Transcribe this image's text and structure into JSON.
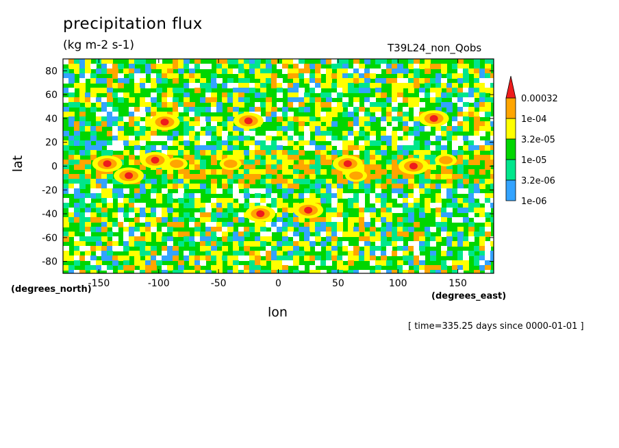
{
  "chart_data": {
    "type": "heatmap",
    "title": "precipitation flux",
    "units": "(kg m-2 s-1)",
    "run_label": "T39L24_non_Qobs",
    "xlabel": "lon",
    "ylabel": "lat",
    "x_units_label": "(degrees_east)",
    "y_units_label": "(degrees_north)",
    "time_label": "[ time=335.25 days since 0000-01-01 ]",
    "xlim": [
      -180,
      180
    ],
    "ylim": [
      -90,
      90
    ],
    "x_ticks": [
      -150,
      -100,
      -50,
      0,
      50,
      100,
      150
    ],
    "y_ticks": [
      80,
      60,
      40,
      20,
      0,
      -20,
      -40,
      -60,
      -80
    ],
    "x_tick_labels": [
      "-150",
      "-100",
      "-50",
      "0",
      "50",
      "100",
      "150"
    ],
    "y_tick_labels": [
      "80",
      "60",
      "40",
      "20",
      "0",
      "-20",
      "-40",
      "-60",
      "-80"
    ],
    "colorbar": {
      "levels": [
        "1e-06",
        "3.2e-06",
        "1e-05",
        "3.2e-05",
        "1e-04",
        "0.00032"
      ],
      "colors": [
        "#ffffff",
        "#33a3ff",
        "#00e68c",
        "#00d600",
        "#ffff00",
        "#ffa500",
        "#ee1c1c"
      ]
    },
    "hotspots": [
      {
        "lon": -143,
        "lat": 2,
        "label": "strong"
      },
      {
        "lon": -125,
        "lat": -8,
        "label": "strong"
      },
      {
        "lon": -103,
        "lat": 5,
        "label": "strong"
      },
      {
        "lon": -95,
        "lat": 37,
        "label": "strong"
      },
      {
        "lon": -85,
        "lat": 2,
        "label": "moderate"
      },
      {
        "lon": -40,
        "lat": 2,
        "label": "moderate"
      },
      {
        "lon": -25,
        "lat": 38,
        "label": "strong"
      },
      {
        "lon": -15,
        "lat": -40,
        "label": "strong"
      },
      {
        "lon": 25,
        "lat": -37,
        "label": "strong"
      },
      {
        "lon": 58,
        "lat": 2,
        "label": "strong"
      },
      {
        "lon": 65,
        "lat": -8,
        "label": "moderate"
      },
      {
        "lon": 113,
        "lat": 0,
        "label": "strong"
      },
      {
        "lon": 130,
        "lat": 40,
        "label": "strong"
      },
      {
        "lon": 140,
        "lat": 5,
        "label": "moderate"
      }
    ]
  }
}
